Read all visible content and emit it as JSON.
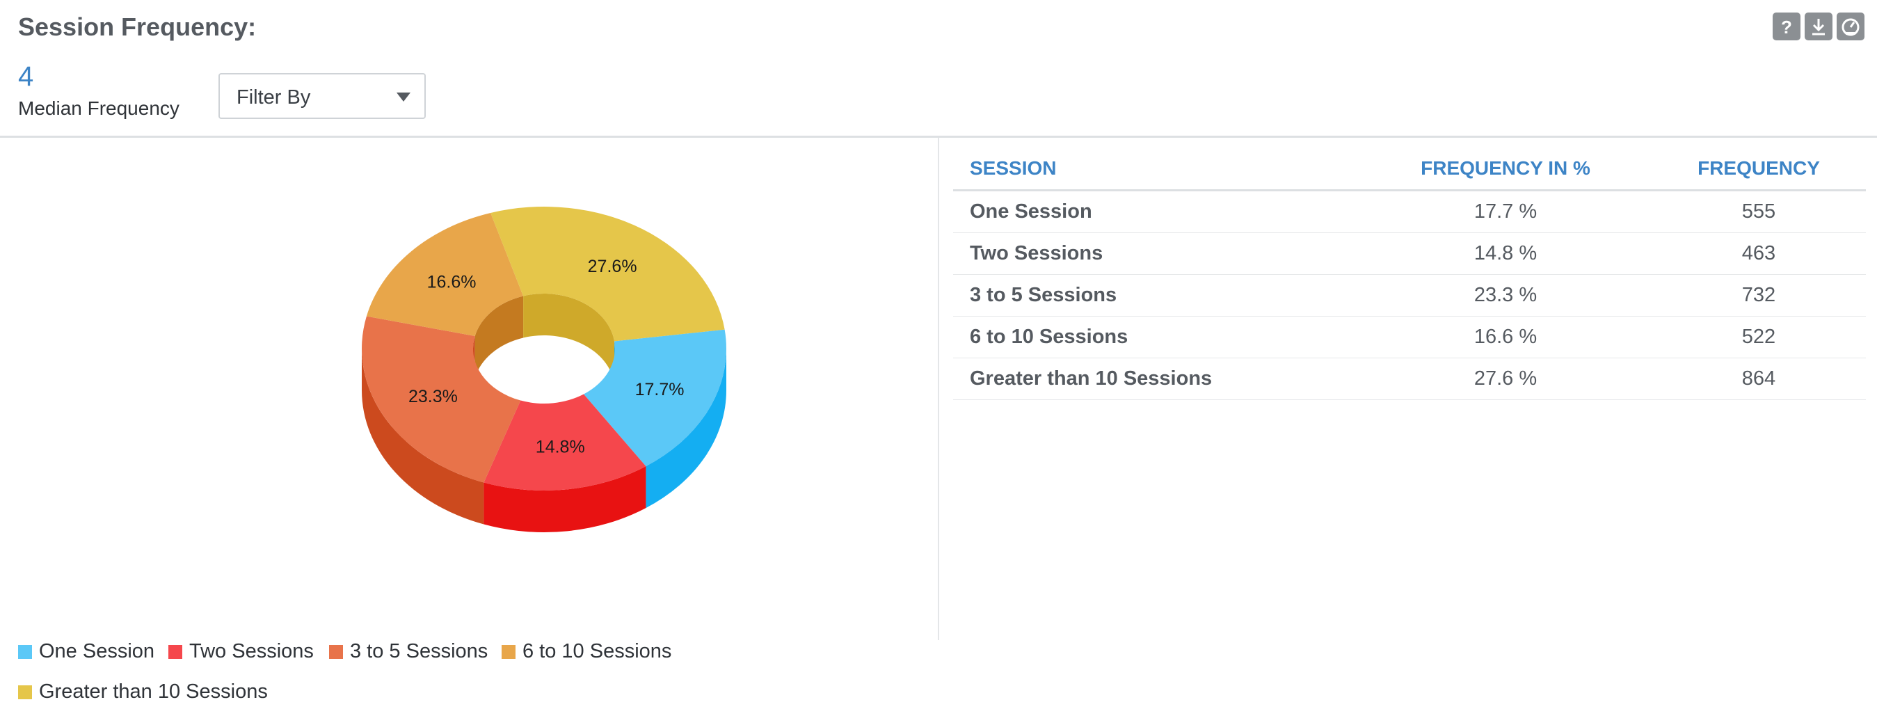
{
  "header": {
    "title": "Session Frequency:",
    "median_value": "4",
    "median_label": "Median Frequency",
    "filter_label": "Filter By"
  },
  "toolbar": {
    "icons": [
      "help-icon",
      "download-icon",
      "dashboard-icon"
    ],
    "help_glyph": "?"
  },
  "table": {
    "headers": [
      "SESSION",
      "FREQUENCY IN %",
      "FREQUENCY"
    ],
    "rows": [
      {
        "session": "One Session",
        "percent": "17.7 %",
        "frequency": "555"
      },
      {
        "session": "Two Sessions",
        "percent": "14.8 %",
        "frequency": "463"
      },
      {
        "session": "3 to 5 Sessions",
        "percent": "23.3 %",
        "frequency": "732"
      },
      {
        "session": "6 to 10 Sessions",
        "percent": "16.6 %",
        "frequency": "522"
      },
      {
        "session": "Greater than 10 Sessions",
        "percent": "27.6 %",
        "frequency": "864"
      }
    ]
  },
  "chart_data": {
    "type": "pie",
    "style": "3d-donut",
    "categories": [
      "One Session",
      "Two Sessions",
      "3 to 5 Sessions",
      "6 to 10 Sessions",
      "Greater than 10 Sessions"
    ],
    "values": [
      17.7,
      14.8,
      23.3,
      16.6,
      27.6
    ],
    "data_labels": [
      "17.7%",
      "14.8%",
      "23.3%",
      "16.6%",
      "27.6%"
    ],
    "colors": [
      "#5bc8f7",
      "#f5474c",
      "#e8734a",
      "#e8a64a",
      "#e5c64a"
    ],
    "side_colors": [
      "#14aef2",
      "#e81212",
      "#cc4a1e",
      "#c47a20",
      "#cfa92a"
    ],
    "legend_position": "bottom-left"
  }
}
